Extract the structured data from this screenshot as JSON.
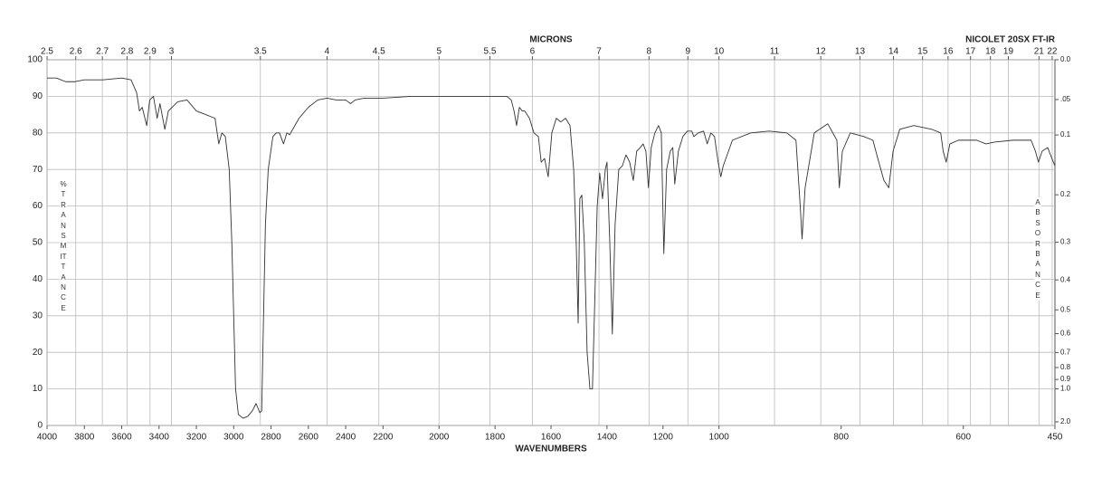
{
  "chart_data": {
    "type": "line",
    "x_label": "WAVENUMBERS",
    "x2_label": "MICRONS",
    "y_label": "%TRANSMITTANCE",
    "y2_label": "ABSORBANCE",
    "instrument": "NICOLET 20SX FT-IR",
    "color": "#333333",
    "xlim": [
      4000,
      450
    ],
    "xticks": [
      4000,
      3800,
      3600,
      3400,
      3200,
      3000,
      2800,
      2600,
      2400,
      2200,
      2000,
      1800,
      1600,
      1400,
      1200,
      1000,
      800,
      600,
      450
    ],
    "x2lim": [
      2.5,
      22
    ],
    "x2ticks": [
      2.5,
      2.6,
      2.7,
      2.8,
      2.9,
      3,
      3.5,
      4,
      4.5,
      5,
      5.5,
      6,
      7,
      8,
      9,
      10,
      11,
      12,
      13,
      14,
      15,
      16,
      17,
      18,
      19,
      21,
      22
    ],
    "ylim": [
      0,
      100
    ],
    "yticks": [
      0,
      10,
      20,
      30,
      40,
      50,
      60,
      70,
      80,
      90,
      100
    ],
    "y2lim": [
      0,
      2
    ],
    "y2scale": "absorbance",
    "y2ticks": [
      {
        "value": 0,
        "label": "0.0"
      },
      {
        "value": 0.05,
        "label": ".05"
      },
      0.1,
      0.2,
      0.3,
      0.4,
      0.5,
      0.6,
      0.7,
      0.8,
      0.9,
      {
        "value": 1,
        "label": "1.0"
      },
      {
        "value": 2,
        "label": "2.0"
      }
    ],
    "grid": true,
    "x": [
      4000,
      3950,
      3900,
      3850,
      3800,
      3700,
      3600,
      3550,
      3520,
      3505,
      3490,
      3466,
      3450,
      3430,
      3410,
      3395,
      3369,
      3350,
      3300,
      3250,
      3200,
      3150,
      3100,
      3080,
      3063,
      3045,
      3024,
      3010,
      3000,
      2990,
      2975,
      2950,
      2925,
      2900,
      2880,
      2860,
      2850,
      2840,
      2830,
      2815,
      2790,
      2772,
      2755,
      2733,
      2715,
      2700,
      2650,
      2600,
      2550,
      2500,
      2450,
      2400,
      2374,
      2350,
      2300,
      2200,
      2100,
      2000,
      1887,
      1758,
      1742,
      1732,
      1723,
      1713,
      1703,
      1694,
      1677,
      1661,
      1645,
      1635,
      1623,
      1610,
      1597,
      1581,
      1565,
      1548,
      1532,
      1519,
      1510,
      1503,
      1497,
      1490,
      1481,
      1471,
      1461,
      1452,
      1445,
      1435,
      1426,
      1416,
      1406,
      1400,
      1390,
      1381,
      1371,
      1358,
      1345,
      1332,
      1319,
      1306,
      1294,
      1281,
      1271,
      1261,
      1252,
      1242,
      1229,
      1216,
      1206,
      1197,
      1187,
      1174,
      1165,
      1158,
      1145,
      1129,
      1113,
      1097,
      1090,
      1074,
      1055,
      1042,
      1029,
      1016,
      1003,
      997,
      993,
      978,
      948,
      918,
      889,
      874,
      867,
      864,
      859,
      844,
      822,
      807,
      803,
      798,
      785,
      763,
      748,
      740,
      730,
      722,
      715,
      704,
      681,
      652,
      637,
      633,
      628,
      622,
      608,
      578,
      563,
      549,
      519,
      489,
      482,
      477,
      471,
      462,
      455,
      450
    ],
    "values": [
      95,
      95,
      94,
      94,
      94.5,
      94.5,
      95,
      94.5,
      91,
      86,
      87,
      82,
      89,
      90,
      84,
      88,
      81,
      86,
      88.5,
      89,
      86,
      85,
      84,
      77,
      80,
      79,
      70,
      50,
      30,
      10,
      3,
      2,
      2.5,
      4,
      6,
      3.5,
      4,
      30,
      55,
      70,
      79,
      80,
      80,
      77,
      80,
      79.5,
      84,
      87,
      89,
      89.5,
      89,
      89,
      88,
      89,
      89.5,
      89.5,
      90,
      90,
      90,
      90,
      89,
      86,
      82,
      87,
      86,
      86,
      84,
      80,
      79,
      72,
      73,
      68,
      80,
      84,
      83,
      84,
      82,
      70,
      50,
      28,
      62,
      63,
      50,
      20,
      10,
      10,
      30,
      60,
      69,
      62,
      70,
      72,
      50,
      25,
      55,
      70,
      71,
      74,
      72,
      67,
      75,
      76,
      77,
      75,
      65,
      76,
      80,
      82,
      80,
      47,
      70,
      75,
      76,
      66,
      75,
      79,
      80.5,
      80.5,
      79,
      80,
      80.5,
      77,
      80,
      79,
      72,
      68,
      71,
      78,
      80,
      80.5,
      80,
      78,
      60,
      51,
      65,
      80,
      82.5,
      78,
      65,
      75,
      80,
      79,
      78,
      73,
      67,
      65,
      75,
      81,
      82,
      81,
      80,
      75,
      72,
      77,
      78,
      78,
      77,
      77.5,
      78,
      78,
      75,
      72,
      75,
      76,
      73,
      71
    ]
  }
}
